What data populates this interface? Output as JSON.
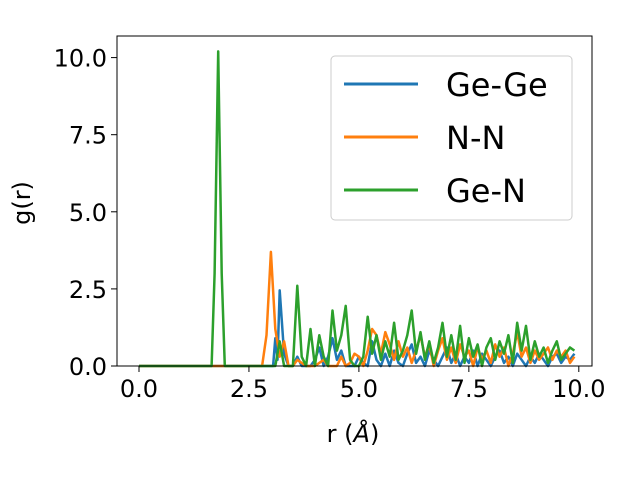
{
  "chart_data": {
    "type": "line",
    "xlabel_main": "r (",
    "xlabel_unit": "Å",
    "xlabel_close": ")",
    "ylabel": "g(r)",
    "xlim": [
      -0.5,
      10.3
    ],
    "ylim": [
      0,
      10.7
    ],
    "xticks": [
      0.0,
      2.5,
      5.0,
      7.5,
      10.0
    ],
    "xtick_labels": [
      "0.0",
      "2.5",
      "5.0",
      "7.5",
      "10.0"
    ],
    "yticks": [
      0.0,
      2.5,
      5.0,
      7.5,
      10.0
    ],
    "ytick_labels": [
      "0.0",
      "2.5",
      "5.0",
      "7.5",
      "10.0"
    ],
    "legend_position": "upper-right",
    "series": [
      {
        "name": "Ge-Ge",
        "color": "#1f77b4",
        "points": [
          [
            0.0,
            0
          ],
          [
            2.9,
            0
          ],
          [
            3.05,
            0.0
          ],
          [
            3.1,
            0.9
          ],
          [
            3.15,
            0.2
          ],
          [
            3.2,
            2.45
          ],
          [
            3.3,
            0.4
          ],
          [
            3.4,
            0.0
          ],
          [
            3.5,
            0.0
          ],
          [
            3.6,
            0.3
          ],
          [
            3.7,
            0.0
          ],
          [
            3.9,
            0.0
          ],
          [
            4.0,
            0.2
          ],
          [
            4.1,
            0.6
          ],
          [
            4.2,
            0.0
          ],
          [
            4.3,
            0.3
          ],
          [
            4.4,
            0.9
          ],
          [
            4.5,
            0.2
          ],
          [
            4.6,
            0.5
          ],
          [
            4.7,
            0.0
          ],
          [
            4.9,
            0.0
          ],
          [
            5.0,
            0.3
          ],
          [
            5.1,
            0.1
          ],
          [
            5.2,
            0.0
          ],
          [
            5.3,
            0.8
          ],
          [
            5.4,
            0.2
          ],
          [
            5.5,
            0.0
          ],
          [
            5.6,
            0.4
          ],
          [
            5.7,
            0.0
          ],
          [
            5.8,
            0.5
          ],
          [
            5.9,
            0.1
          ],
          [
            6.0,
            0.0
          ],
          [
            6.1,
            0.4
          ],
          [
            6.2,
            0.7
          ],
          [
            6.3,
            0.1
          ],
          [
            6.4,
            0.3
          ],
          [
            6.5,
            0.0
          ],
          [
            6.6,
            0.5
          ],
          [
            6.7,
            0.2
          ],
          [
            6.8,
            0.0
          ],
          [
            6.9,
            0.3
          ],
          [
            7.0,
            0.6
          ],
          [
            7.1,
            0.1
          ],
          [
            7.2,
            0.4
          ],
          [
            7.3,
            0.0
          ],
          [
            7.4,
            0.3
          ],
          [
            7.5,
            0.1
          ],
          [
            7.6,
            0.5
          ],
          [
            7.7,
            0.0
          ],
          [
            7.8,
            0.4
          ],
          [
            7.9,
            0.2
          ],
          [
            8.0,
            0.0
          ],
          [
            8.1,
            0.3
          ],
          [
            8.2,
            0.5
          ],
          [
            8.3,
            0.1
          ],
          [
            8.4,
            0.3
          ],
          [
            8.5,
            0.0
          ],
          [
            8.6,
            0.4
          ],
          [
            8.7,
            0.2
          ],
          [
            8.8,
            0.0
          ],
          [
            8.9,
            0.3
          ],
          [
            9.0,
            0.1
          ],
          [
            9.1,
            0.4
          ],
          [
            9.2,
            0.2
          ],
          [
            9.3,
            0.0
          ],
          [
            9.4,
            0.3
          ],
          [
            9.5,
            0.4
          ],
          [
            9.6,
            0.1
          ],
          [
            9.7,
            0.3
          ],
          [
            9.8,
            0.2
          ],
          [
            9.9,
            0.4
          ]
        ]
      },
      {
        "name": "N-N",
        "color": "#ff7f0e",
        "points": [
          [
            0.0,
            0
          ],
          [
            2.8,
            0
          ],
          [
            2.9,
            1.0
          ],
          [
            3.0,
            3.7
          ],
          [
            3.1,
            1.2
          ],
          [
            3.2,
            0.3
          ],
          [
            3.3,
            0.8
          ],
          [
            3.4,
            0.0
          ],
          [
            3.5,
            0.0
          ],
          [
            3.6,
            0.2
          ],
          [
            3.8,
            0.0
          ],
          [
            4.0,
            0.0
          ],
          [
            4.2,
            0.2
          ],
          [
            4.3,
            0.0
          ],
          [
            4.5,
            0.0
          ],
          [
            4.6,
            0.3
          ],
          [
            4.7,
            0.0
          ],
          [
            4.8,
            0.1
          ],
          [
            4.9,
            0.4
          ],
          [
            5.0,
            0.3
          ],
          [
            5.1,
            0.0
          ],
          [
            5.2,
            0.5
          ],
          [
            5.3,
            1.2
          ],
          [
            5.4,
            1.0
          ],
          [
            5.5,
            0.4
          ],
          [
            5.6,
            1.1
          ],
          [
            5.7,
            0.7
          ],
          [
            5.8,
            0.2
          ],
          [
            5.9,
            0.8
          ],
          [
            6.0,
            0.3
          ],
          [
            6.1,
            0.6
          ],
          [
            6.2,
            0.1
          ],
          [
            6.3,
            0.5
          ],
          [
            6.4,
            1.0
          ],
          [
            6.5,
            0.3
          ],
          [
            6.6,
            0.7
          ],
          [
            6.7,
            0.0
          ],
          [
            6.8,
            0.5
          ],
          [
            6.9,
            0.9
          ],
          [
            7.0,
            0.2
          ],
          [
            7.1,
            0.6
          ],
          [
            7.2,
            0.1
          ],
          [
            7.3,
            0.7
          ],
          [
            7.4,
            0.3
          ],
          [
            7.5,
            0.5
          ],
          [
            7.6,
            0.0
          ],
          [
            7.7,
            0.6
          ],
          [
            7.8,
            0.2
          ],
          [
            7.9,
            0.5
          ],
          [
            8.0,
            0.1
          ],
          [
            8.1,
            0.7
          ],
          [
            8.2,
            0.3
          ],
          [
            8.3,
            0.6
          ],
          [
            8.4,
            0.0
          ],
          [
            8.5,
            0.4
          ],
          [
            8.6,
            1.1
          ],
          [
            8.7,
            0.3
          ],
          [
            8.8,
            0.6
          ],
          [
            8.9,
            0.1
          ],
          [
            9.0,
            0.5
          ],
          [
            9.1,
            0.2
          ],
          [
            9.2,
            0.4
          ],
          [
            9.3,
            0.6
          ],
          [
            9.4,
            0.2
          ],
          [
            9.5,
            0.5
          ],
          [
            9.6,
            0.3
          ],
          [
            9.7,
            0.5
          ],
          [
            9.8,
            0.1
          ],
          [
            9.9,
            0.3
          ]
        ]
      },
      {
        "name": "Ge-N",
        "color": "#2ca02c",
        "points": [
          [
            0.0,
            0
          ],
          [
            1.65,
            0
          ],
          [
            1.72,
            3.0
          ],
          [
            1.8,
            10.2
          ],
          [
            1.88,
            3.0
          ],
          [
            1.95,
            0
          ],
          [
            3.1,
            0
          ],
          [
            3.2,
            0.8
          ],
          [
            3.3,
            0.0
          ],
          [
            3.5,
            0.0
          ],
          [
            3.6,
            2.6
          ],
          [
            3.7,
            0.3
          ],
          [
            3.8,
            0.0
          ],
          [
            3.9,
            1.2
          ],
          [
            4.0,
            0.0
          ],
          [
            4.1,
            1.0
          ],
          [
            4.2,
            0.3
          ],
          [
            4.3,
            0.0
          ],
          [
            4.4,
            1.8
          ],
          [
            4.5,
            0.5
          ],
          [
            4.6,
            1.0
          ],
          [
            4.7,
            1.95
          ],
          [
            4.8,
            0.2
          ],
          [
            4.9,
            0.0
          ],
          [
            5.0,
            0.0
          ],
          [
            5.1,
            0.3
          ],
          [
            5.2,
            1.6
          ],
          [
            5.3,
            0.4
          ],
          [
            5.4,
            1.0
          ],
          [
            5.5,
            0.2
          ],
          [
            5.6,
            0.8
          ],
          [
            5.7,
            0.3
          ],
          [
            5.8,
            1.4
          ],
          [
            5.9,
            0.2
          ],
          [
            6.0,
            0.5
          ],
          [
            6.1,
            1.0
          ],
          [
            6.2,
            1.8
          ],
          [
            6.3,
            0.4
          ],
          [
            6.4,
            1.1
          ],
          [
            6.5,
            0.2
          ],
          [
            6.6,
            0.8
          ],
          [
            6.7,
            0.1
          ],
          [
            6.8,
            0.6
          ],
          [
            6.9,
            1.4
          ],
          [
            7.0,
            0.3
          ],
          [
            7.1,
            1.0
          ],
          [
            7.2,
            0.2
          ],
          [
            7.3,
            1.3
          ],
          [
            7.4,
            0.1
          ],
          [
            7.5,
            0.9
          ],
          [
            7.6,
            0.3
          ],
          [
            7.7,
            0.7
          ],
          [
            7.8,
            0.0
          ],
          [
            7.9,
            0.6
          ],
          [
            8.0,
            0.9
          ],
          [
            8.1,
            0.2
          ],
          [
            8.2,
            0.8
          ],
          [
            8.3,
            0.4
          ],
          [
            8.4,
            1.0
          ],
          [
            8.5,
            0.1
          ],
          [
            8.6,
            1.4
          ],
          [
            8.7,
            0.5
          ],
          [
            8.8,
            1.3
          ],
          [
            8.9,
            0.2
          ],
          [
            9.0,
            0.8
          ],
          [
            9.1,
            0.3
          ],
          [
            9.2,
            0.6
          ],
          [
            9.3,
            0.1
          ],
          [
            9.4,
            0.5
          ],
          [
            9.5,
            0.8
          ],
          [
            9.6,
            0.2
          ],
          [
            9.7,
            0.4
          ],
          [
            9.8,
            0.6
          ],
          [
            9.9,
            0.5
          ]
        ]
      }
    ]
  }
}
